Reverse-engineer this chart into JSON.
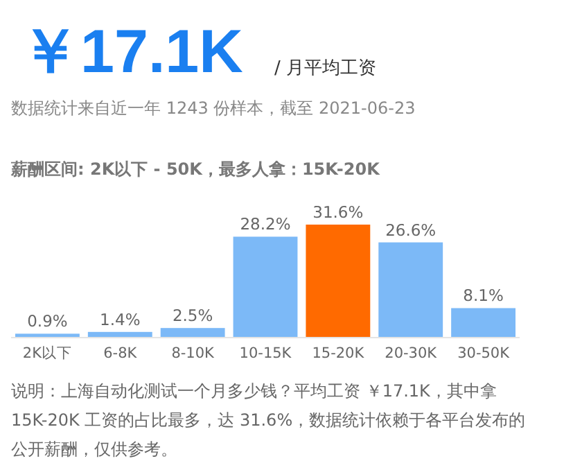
{
  "chart_data": {
    "type": "bar",
    "title": "￥17.1K",
    "subtitle": "/ 月平均工资",
    "annotations": [
      "数据统计来自近一年 1243 份样本，截至 2021-06-23",
      "薪酬区间: 2K以下 - 50K，最多人拿：15K-20K",
      "说明：上海自动化测试一个月多少钱？平均工资 ￥17.1K，其中拿 15K-20K 工资的占比最多，达 31.6%，数据统计依赖于各平台发布的公开薪酬，仅供参考。"
    ],
    "categories": [
      "2K以下",
      "6-8K",
      "8-10K",
      "10-15K",
      "15-20K",
      "20-30K",
      "30-50K"
    ],
    "values": [
      0.9,
      1.4,
      2.5,
      28.2,
      31.6,
      26.6,
      8.1
    ],
    "value_labels": [
      "0.9%",
      "1.4%",
      "2.5%",
      "28.2%",
      "31.6%",
      "26.6%",
      "8.1%"
    ],
    "colors": [
      "#7cb9f7",
      "#7cb9f7",
      "#7cb9f7",
      "#7cb9f7",
      "#ff6a00",
      "#7cb9f7",
      "#7cb9f7"
    ]
  }
}
